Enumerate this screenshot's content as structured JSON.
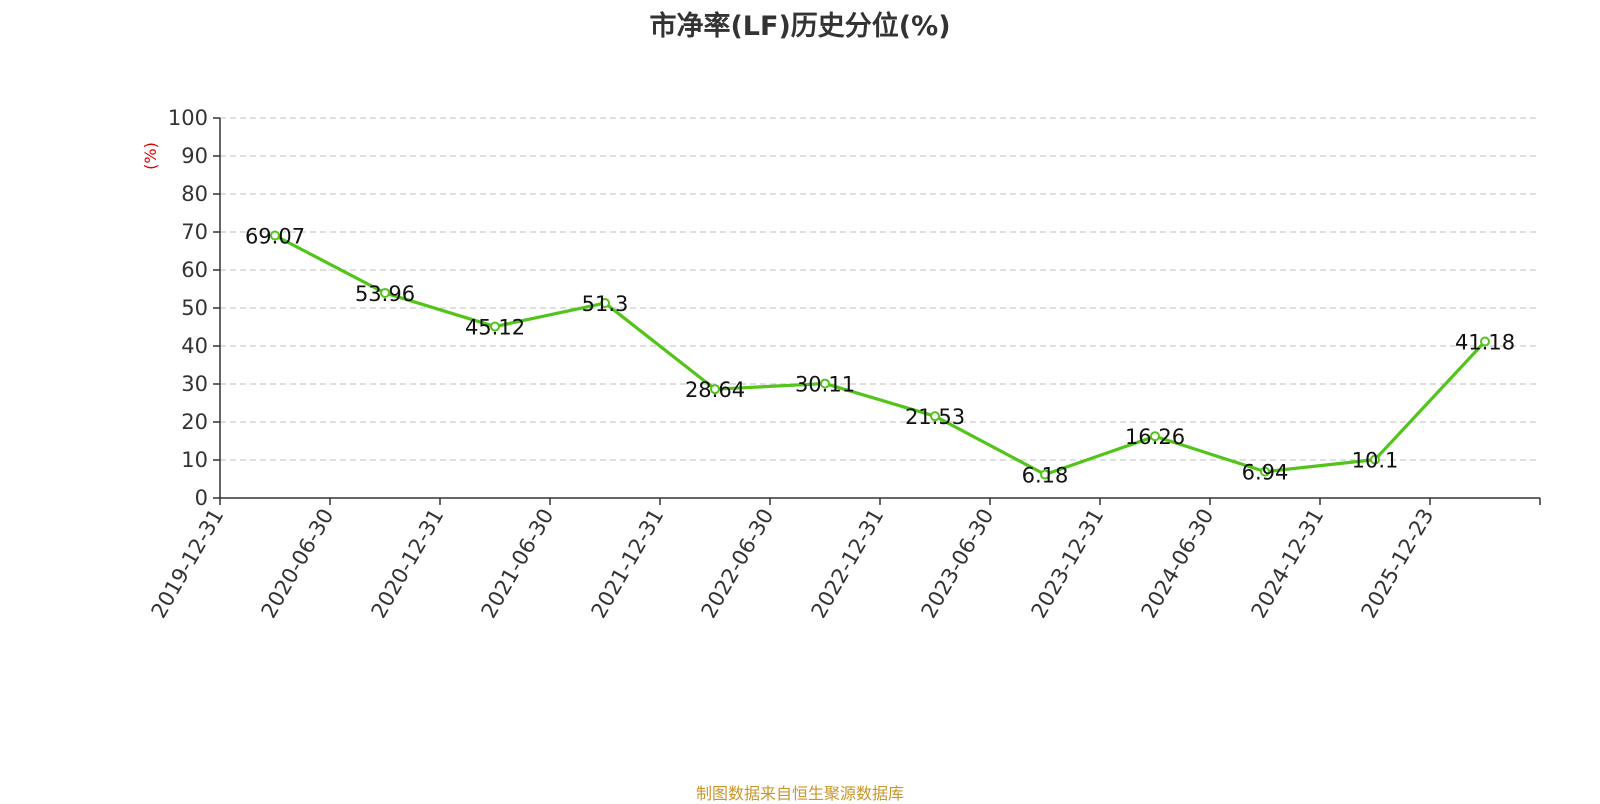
{
  "chart_data": {
    "type": "line",
    "title": "市净率(LF)历史分位(%)",
    "ylabel": "(%)",
    "ylim": [
      0,
      100
    ],
    "yticks": [
      0,
      10,
      20,
      30,
      40,
      50,
      60,
      70,
      80,
      90,
      100
    ],
    "categories": [
      "2019-12-31",
      "2020-06-30",
      "2020-12-31",
      "2021-06-30",
      "2021-12-31",
      "2022-06-30",
      "2022-12-31",
      "2023-06-30",
      "2023-12-31",
      "2024-06-30",
      "2024-12-31",
      "2025-12-23"
    ],
    "series": [
      {
        "values": [
          69.07,
          53.96,
          45.12,
          51.3,
          28.64,
          30.11,
          21.53,
          6.18,
          16.26,
          6.94,
          10.1,
          41.18
        ],
        "labels": [
          "69.07",
          "53.96",
          "45.12",
          "51.3",
          "28.64",
          "30.11",
          "21.53",
          "6.18",
          "16.26",
          "6.94",
          "10.1",
          "41.18"
        ],
        "color": "#52c41a"
      }
    ],
    "grid": true,
    "legend": "none"
  },
  "source": "制图数据来自恒生聚源数据库",
  "colors": {
    "line": "#52c41a",
    "grid": "#cccccc",
    "axis": "#333333",
    "source": "#c8962c",
    "unit": "#e00000"
  }
}
